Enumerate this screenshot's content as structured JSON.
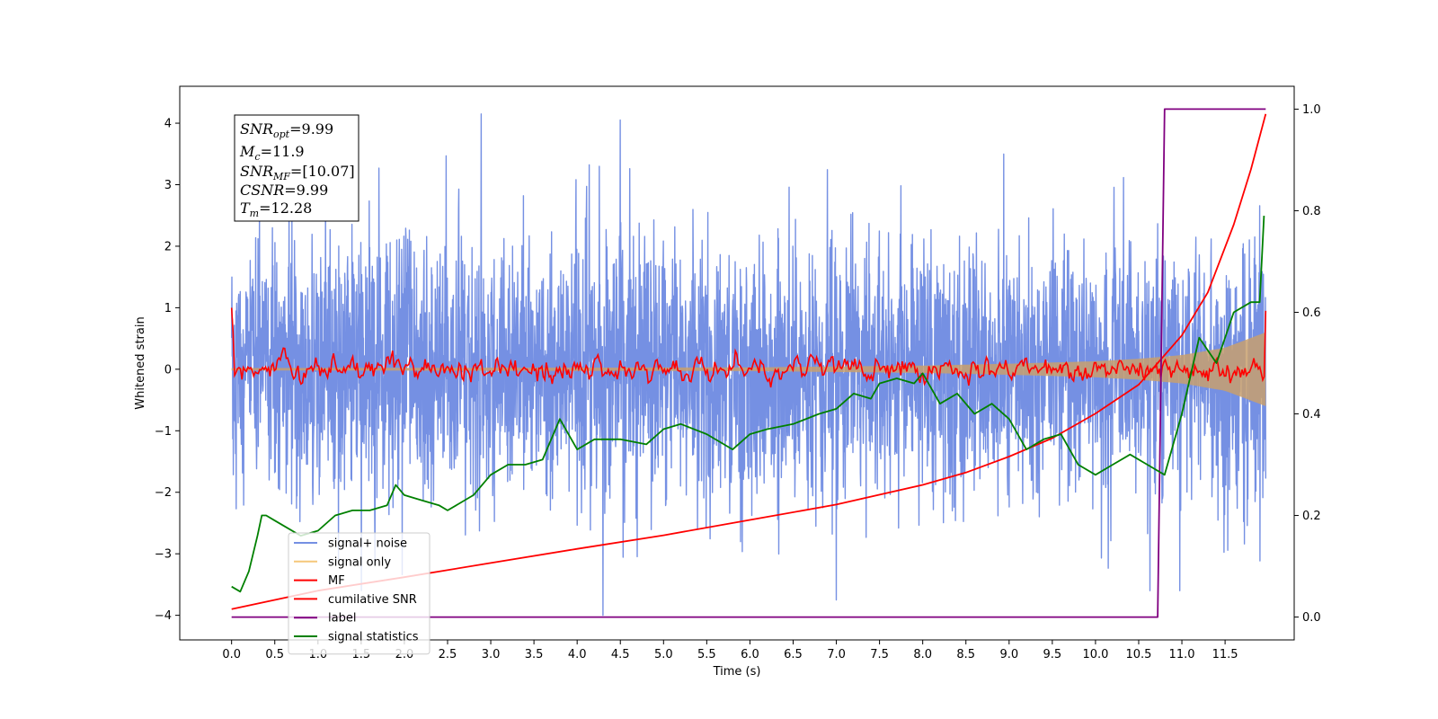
{
  "chart_data": {
    "type": "line",
    "xlabel": "Time (s)",
    "ylabel": "Whitened strain",
    "xlim": [
      -0.6,
      12.3
    ],
    "ylim": [
      -4.4,
      4.6
    ],
    "y2lim": [
      -0.045,
      1.045
    ],
    "x_ticks": [
      "0.0",
      "0.5",
      "1.0",
      "1.5",
      "2.0",
      "2.5",
      "3.0",
      "3.5",
      "4.0",
      "4.5",
      "5.0",
      "5.5",
      "6.0",
      "6.5",
      "7.0",
      "7.5",
      "8.0",
      "8.5",
      "9.0",
      "9.5",
      "10.0",
      "10.5",
      "11.0",
      "11.5"
    ],
    "y_ticks": [
      "4",
      "3",
      "2",
      "1",
      "0",
      "−1",
      "−2",
      "−3",
      "−4"
    ],
    "y2_ticks": [
      "1.0",
      "0.8",
      "0.6",
      "0.4",
      "0.2",
      "0.0"
    ],
    "legend_position": "lower-left",
    "info_box": {
      "snr_opt": {
        "base": "SNR",
        "sub": "opt",
        "value": "=9.99"
      },
      "mc": {
        "base": "M",
        "sub": "c",
        "value": "=11.9"
      },
      "snr_mf": {
        "base": "SNR",
        "sub": "MF",
        "value": "=[10.07]"
      },
      "csnr": {
        "base": "CSNR",
        "value": "=9.99"
      },
      "tm": {
        "base": "T",
        "sub": "m",
        "value": "=12.28"
      }
    },
    "series": [
      {
        "name": "signal+ noise",
        "color": "#7590e3",
        "axis": "left",
        "description_values": {
          "x_range": [
            0,
            11.97
          ],
          "amplitude_std": 1.0,
          "peaks": [
            [
              2.89,
              4.15
            ],
            [
              4.5,
              4.05
            ],
            [
              4.3,
              -4.0
            ],
            [
              7.0,
              -3.75
            ]
          ]
        }
      },
      {
        "name": "signal only",
        "color": "#f5c77a",
        "axis": "left",
        "envelope": {
          "x": [
            0,
            6,
            8,
            9,
            10,
            10.5,
            11,
            11.5,
            11.97
          ],
          "amp": [
            0.02,
            0.03,
            0.06,
            0.09,
            0.13,
            0.17,
            0.23,
            0.35,
            0.6
          ]
        }
      },
      {
        "name": "MF",
        "color": "#ff0000",
        "axis": "left",
        "description_values": {
          "start": 1.0,
          "baseline": 0.0,
          "noise_std": 0.09,
          "end": 0.95
        }
      },
      {
        "name": "cumilative SNR",
        "color": "#ff0000",
        "axis": "left",
        "x": [
          0,
          0.5,
          1,
          2,
          3,
          4,
          5,
          6,
          7,
          8,
          8.5,
          9,
          9.5,
          10,
          10.5,
          11,
          11.3,
          11.6,
          11.8,
          11.97
        ],
        "y": [
          -3.9,
          -3.75,
          -3.6,
          -3.38,
          -3.15,
          -2.92,
          -2.7,
          -2.45,
          -2.2,
          -1.88,
          -1.68,
          -1.42,
          -1.12,
          -0.72,
          -0.25,
          0.55,
          1.25,
          2.35,
          3.25,
          4.15
        ]
      },
      {
        "name": "label",
        "color": "#800080",
        "axis": "right",
        "x": [
          0,
          10.72,
          10.8,
          11.97
        ],
        "y": [
          0,
          0,
          1,
          1
        ]
      },
      {
        "name": "signal statistics",
        "color": "#008000",
        "axis": "right",
        "x": [
          0,
          0.1,
          0.2,
          0.3,
          0.35,
          0.4,
          0.5,
          0.6,
          0.8,
          1.0,
          1.2,
          1.4,
          1.6,
          1.8,
          1.9,
          2.0,
          2.2,
          2.4,
          2.5,
          2.8,
          3.0,
          3.2,
          3.4,
          3.6,
          3.8,
          4.0,
          4.2,
          4.5,
          4.8,
          5.0,
          5.2,
          5.5,
          5.8,
          6.0,
          6.2,
          6.5,
          6.8,
          7.0,
          7.2,
          7.4,
          7.5,
          7.7,
          7.9,
          8.0,
          8.2,
          8.4,
          8.6,
          8.8,
          9.0,
          9.2,
          9.4,
          9.6,
          9.8,
          10.0,
          10.2,
          10.4,
          10.6,
          10.8,
          11.0,
          11.2,
          11.4,
          11.6,
          11.8,
          11.9,
          11.95
        ],
        "y": [
          0.06,
          0.05,
          0.09,
          0.16,
          0.2,
          0.2,
          0.19,
          0.18,
          0.16,
          0.17,
          0.2,
          0.21,
          0.21,
          0.22,
          0.26,
          0.24,
          0.23,
          0.22,
          0.21,
          0.24,
          0.28,
          0.3,
          0.3,
          0.31,
          0.39,
          0.33,
          0.35,
          0.35,
          0.34,
          0.37,
          0.38,
          0.36,
          0.33,
          0.36,
          0.37,
          0.38,
          0.4,
          0.41,
          0.44,
          0.43,
          0.46,
          0.47,
          0.46,
          0.48,
          0.42,
          0.44,
          0.4,
          0.42,
          0.39,
          0.33,
          0.35,
          0.36,
          0.3,
          0.28,
          0.3,
          0.32,
          0.3,
          0.28,
          0.4,
          0.55,
          0.5,
          0.6,
          0.62,
          0.62,
          0.79
        ]
      }
    ]
  }
}
